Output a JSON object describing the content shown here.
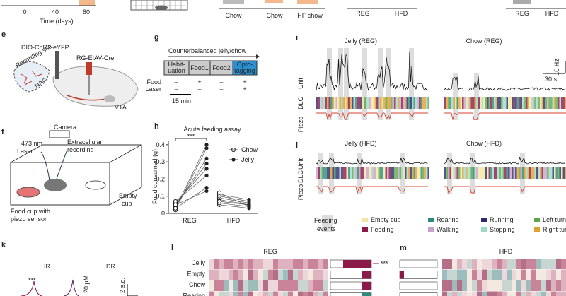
{
  "top": {
    "time_label": "Time (days)",
    "time_ticks": [
      0,
      40,
      80
    ],
    "labels": [
      "Chow",
      "Chow",
      "HF chow",
      "REG",
      "HFD",
      "REG",
      "HFD"
    ]
  },
  "panel_e": {
    "letter": "e",
    "virus1": "DIO-ChR2-eYFP",
    "site": "Recording site",
    "virus2": "RG-EIAV-Cre",
    "nac": "NAc",
    "vta": "VTA"
  },
  "panel_f": {
    "letter": "f",
    "camera": "Camera",
    "laser": [
      "473 nm",
      "Laser"
    ],
    "recording": [
      "Extracellular",
      "recording"
    ],
    "cup": [
      "Food cup with",
      "piezo sensor"
    ],
    "empty": [
      "Empty",
      "cup"
    ]
  },
  "panel_g": {
    "letter": "g",
    "title": "Counterbalanced jelly/chow",
    "stages": [
      [
        "Habit-",
        "uation"
      ],
      [
        "Food1"
      ],
      [
        "Food2"
      ],
      [
        "Opto-",
        "tagging"
      ]
    ],
    "rows": [
      "Food",
      "Laser"
    ],
    "food": [
      "–",
      "+",
      "–",
      "+"
    ],
    "laser": [
      "–",
      "–",
      "–",
      "+"
    ],
    "scale": "15 min"
  },
  "panel_h": {
    "letter": "h",
    "title": "Acute feeding assay",
    "ylabel": "Food consumed (g)",
    "ylim": [
      0,
      0.42
    ],
    "yticks": [
      0,
      0.1,
      0.2,
      0.3,
      0.4
    ],
    "categories": [
      "REG",
      "HFD"
    ],
    "legend": [
      "Chow",
      "Jelly"
    ],
    "significance": "***",
    "reg_chow": [
      0.02,
      0.03,
      0.04,
      0.05,
      0.06,
      0.07,
      0.03,
      0.05
    ],
    "reg_jelly": [
      0.38,
      0.4,
      0.32,
      0.29,
      0.26,
      0.22,
      0.15,
      0.13
    ],
    "hfd_chow": [
      0.05,
      0.06,
      0.08,
      0.09,
      0.1,
      0.11,
      0.07,
      0.12
    ],
    "hfd_jelly": [
      0.03,
      0.04,
      0.05,
      0.06,
      0.07,
      0.08,
      0.05,
      0.04
    ]
  },
  "panel_i": {
    "letter": "i",
    "left": "Jelly (REG)",
    "right": "Chow (REG)",
    "rows": [
      "Unit",
      "DLC",
      "Piezo"
    ],
    "scale_y": "10 Hz",
    "scale_x": "30 s"
  },
  "panel_j": {
    "letter": "j",
    "left": "Jelly (HFD)",
    "right": "Chow (HFD)",
    "rows": [
      "Unit",
      "DLC",
      "Piezo"
    ]
  },
  "legend": {
    "events": [
      "Feeding",
      "events"
    ],
    "items": [
      "Empty cup",
      "Feeding",
      "Rearing",
      "Walking",
      "Running",
      "Stopping",
      "Left turn",
      "Right turn"
    ]
  },
  "panel_k": {
    "letter": "k",
    "ir": "IR",
    "dr": "DR",
    "significance": "***",
    "scale1": "20 µM",
    "scale2": "2 s.d."
  },
  "panel_l": {
    "letter": "l",
    "title": "REG",
    "rows": [
      "Jelly",
      "Empty",
      "Chow",
      "Rearing"
    ],
    "significance": "***"
  },
  "panel_m": {
    "letter": "m",
    "title": "HFD"
  }
}
